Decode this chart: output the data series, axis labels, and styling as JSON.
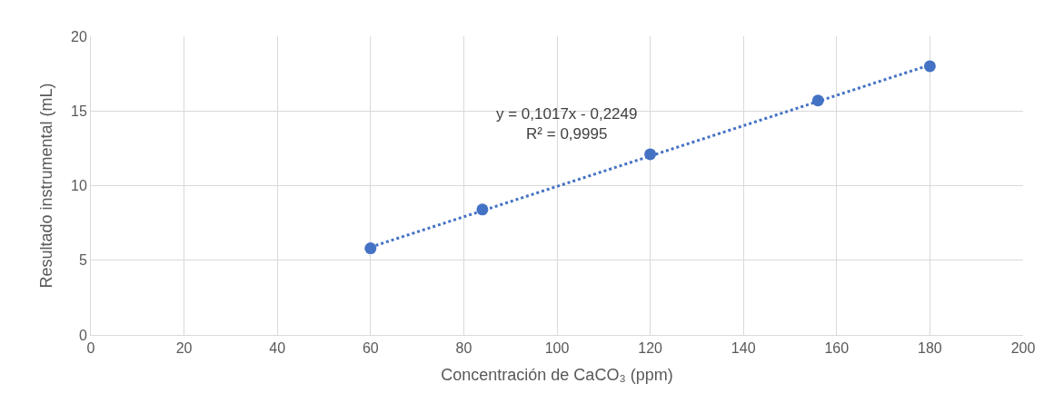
{
  "chart_data": {
    "type": "scatter",
    "xlabel": "Concentración de CaCO₃ (ppm)",
    "ylabel": "Resultado instrumental (mL)",
    "xlim": [
      0,
      200
    ],
    "xticks": [
      0,
      20,
      40,
      60,
      80,
      100,
      120,
      140,
      160,
      180,
      200
    ],
    "ylim": [
      0,
      20
    ],
    "yticks": [
      0,
      5,
      10,
      15,
      20
    ],
    "grid": true,
    "marker": "circle",
    "series": [
      {
        "color": "#4472c4",
        "x": [
          60,
          84,
          120,
          156,
          180
        ],
        "values": [
          5.8,
          8.4,
          12.1,
          15.7,
          18.0
        ]
      },
      {
        "type": "line",
        "color": "#4472c4",
        "line_style": "dotted",
        "marker": "none",
        "x": [
          60,
          180
        ],
        "values": [
          5.88,
          18.08
        ]
      }
    ],
    "annotations": [
      "y = 0,1017x - 0,2249\nR² = 0,9995"
    ]
  }
}
